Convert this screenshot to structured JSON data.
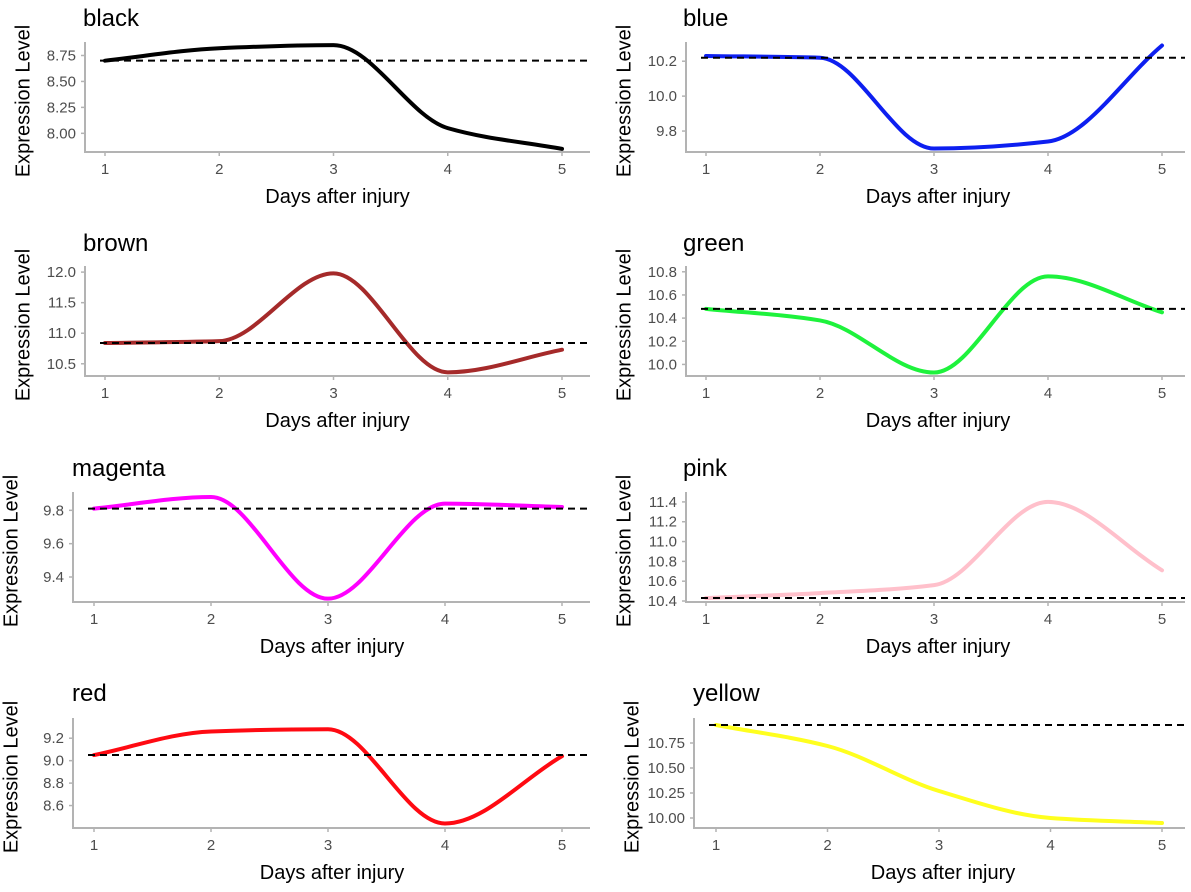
{
  "chart_data": [
    {
      "type": "line",
      "title": "black",
      "xlabel": "Days after injury",
      "ylabel": "Expression Level",
      "color": "#000000",
      "x": [
        1,
        2,
        3,
        4,
        5
      ],
      "values": [
        8.7,
        8.82,
        8.85,
        8.05,
        7.85
      ],
      "baseline": 8.7,
      "ylim": [
        7.82,
        8.88
      ],
      "yticks": [
        8.0,
        8.25,
        8.5,
        8.75
      ],
      "ytick_labels": [
        "8.00",
        "8.25",
        "8.50",
        "8.75"
      ],
      "xticks": [
        1,
        2,
        3,
        4,
        5
      ],
      "xtick_labels": [
        "1",
        "2",
        "3",
        "4",
        "5"
      ]
    },
    {
      "type": "line",
      "title": "blue",
      "xlabel": "Days after injury",
      "ylabel": "Expression Level",
      "color": "#0d1ff0",
      "x": [
        1,
        2,
        3,
        4,
        5
      ],
      "values": [
        10.23,
        10.22,
        9.7,
        9.74,
        10.29
      ],
      "baseline": 10.22,
      "ylim": [
        9.68,
        10.31
      ],
      "yticks": [
        9.8,
        10.0,
        10.2
      ],
      "ytick_labels": [
        "9.8",
        "10.0",
        "10.2"
      ],
      "xticks": [
        1,
        2,
        3,
        4,
        5
      ],
      "xtick_labels": [
        "1",
        "2",
        "3",
        "4",
        "5"
      ]
    },
    {
      "type": "line",
      "title": "brown",
      "xlabel": "Days after injury",
      "ylabel": "Expression Level",
      "color": "#a52a2a",
      "x": [
        1,
        2,
        3,
        4,
        5
      ],
      "values": [
        10.84,
        10.87,
        11.98,
        10.36,
        10.73
      ],
      "baseline": 10.84,
      "ylim": [
        10.3,
        12.1
      ],
      "yticks": [
        10.5,
        11.0,
        11.5,
        12.0
      ],
      "ytick_labels": [
        "10.5",
        "11.0",
        "11.5",
        "12.0"
      ],
      "xticks": [
        1,
        2,
        3,
        4,
        5
      ],
      "xtick_labels": [
        "1",
        "2",
        "3",
        "4",
        "5"
      ]
    },
    {
      "type": "line",
      "title": "green",
      "xlabel": "Days after injury",
      "ylabel": "Expression Level",
      "color": "#1ef23c",
      "x": [
        1,
        2,
        3,
        4,
        5
      ],
      "values": [
        10.48,
        10.38,
        9.93,
        10.76,
        10.45
      ],
      "baseline": 10.48,
      "ylim": [
        9.9,
        10.85
      ],
      "yticks": [
        10.0,
        10.2,
        10.4,
        10.6,
        10.8
      ],
      "ytick_labels": [
        "10.0",
        "10.2",
        "10.4",
        "10.6",
        "10.8"
      ],
      "xticks": [
        1,
        2,
        3,
        4,
        5
      ],
      "xtick_labels": [
        "1",
        "2",
        "3",
        "4",
        "5"
      ]
    },
    {
      "type": "line",
      "title": "magenta",
      "xlabel": "Days after injury",
      "ylabel": "Expression Level",
      "color": "#ff00ff",
      "x": [
        1,
        2,
        3,
        4,
        5
      ],
      "values": [
        9.81,
        9.88,
        9.27,
        9.84,
        9.82
      ],
      "baseline": 9.81,
      "ylim": [
        9.25,
        9.91
      ],
      "yticks": [
        9.4,
        9.6,
        9.8
      ],
      "ytick_labels": [
        "9.4",
        "9.6",
        "9.8"
      ],
      "xticks": [
        1,
        2,
        3,
        4,
        5
      ],
      "xtick_labels": [
        "1",
        "2",
        "3",
        "4",
        "5"
      ]
    },
    {
      "type": "line",
      "title": "pink",
      "xlabel": "Days after injury",
      "ylabel": "Expression Level",
      "color": "#ffc0cb",
      "x": [
        1,
        2,
        3,
        4,
        5
      ],
      "values": [
        10.43,
        10.48,
        10.56,
        11.4,
        10.71
      ],
      "baseline": 10.43,
      "ylim": [
        10.39,
        11.5
      ],
      "yticks": [
        10.4,
        10.6,
        10.8,
        11.0,
        11.2,
        11.4
      ],
      "ytick_labels": [
        "10.4",
        "10.6",
        "10.8",
        "11.0",
        "11.2",
        "11.4"
      ],
      "xticks": [
        1,
        2,
        3,
        4,
        5
      ],
      "xtick_labels": [
        "1",
        "2",
        "3",
        "4",
        "5"
      ]
    },
    {
      "type": "line",
      "title": "red",
      "xlabel": "Days after injury",
      "ylabel": "Expression Level",
      "color": "#ff0a12",
      "x": [
        1,
        2,
        3,
        4,
        5
      ],
      "values": [
        9.05,
        9.26,
        9.28,
        8.44,
        9.04
      ],
      "baseline": 9.05,
      "ylim": [
        8.4,
        9.38
      ],
      "yticks": [
        8.6,
        8.8,
        9.0,
        9.2
      ],
      "ytick_labels": [
        "8.6",
        "8.8",
        "9.0",
        "9.2"
      ],
      "xticks": [
        1,
        2,
        3,
        4,
        5
      ],
      "xtick_labels": [
        "1",
        "2",
        "3",
        "4",
        "5"
      ]
    },
    {
      "type": "line",
      "title": "yellow",
      "xlabel": "Days after injury",
      "ylabel": "Expression Level",
      "color": "#ffff1e",
      "x": [
        1,
        2,
        3,
        4,
        5
      ],
      "values": [
        10.93,
        10.72,
        10.27,
        10.0,
        9.95
      ],
      "baseline": 10.93,
      "ylim": [
        9.9,
        11.0
      ],
      "yticks": [
        10.0,
        10.25,
        10.5,
        10.75
      ],
      "ytick_labels": [
        "10.00",
        "10.25",
        "10.50",
        "10.75"
      ],
      "xticks": [
        1,
        2,
        3,
        4,
        5
      ],
      "xtick_labels": [
        "1",
        "2",
        "3",
        "4",
        "5"
      ]
    }
  ]
}
